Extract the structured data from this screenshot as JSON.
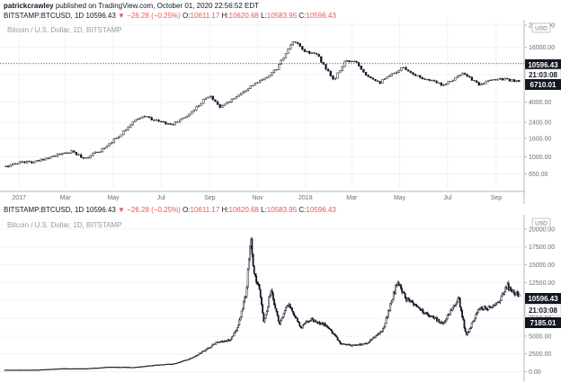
{
  "header": {
    "author": "patrickcrawley",
    "published_text": "published on TradingView.com, October 01, 2020 22:56:52 EDT"
  },
  "ohlc": {
    "symbol": "BITSTAMP:BTCUSD, 1D",
    "last": "10596.43",
    "arrow": "▼",
    "change": "−26.28 (−0.25%)",
    "o_label": "O:",
    "o": "10611.17",
    "h_label": "H:",
    "h": "10620.68",
    "l_label": "L:",
    "l": "10583.95",
    "c_label": "C:",
    "c": "10596.43"
  },
  "colors": {
    "candle": "#131722",
    "ohlc_red": "#ef5350",
    "axis_text": "#6a6d78",
    "border": "#b2b5be",
    "grid": "#f0f3fa"
  },
  "chart_data": [
    {
      "type": "candlestick",
      "scale": "log",
      "watermark": "Bitcoin / U.S. Dollar, 1D, BITSTAMP",
      "currency": "USD",
      "x_ticks": [
        "2017",
        "Mar",
        "May",
        "Jul",
        "Sep",
        "Nov",
        "2018",
        "Mar",
        "May",
        "Jul",
        "Sep"
      ],
      "y_ticks": [
        "28000.00",
        "16000.00",
        "8000.00",
        "4000.00",
        "2400.00",
        "1600.00",
        "1000.00",
        "650.00"
      ],
      "ylim": [
        500,
        28000
      ],
      "price_tags": [
        {
          "text": "10596.43",
          "style": "dark"
        },
        {
          "text": "21:03:08",
          "style": "light"
        },
        {
          "text": "6710.01",
          "style": "dark"
        }
      ],
      "dotted_line_value": 10596.43,
      "x_dates": [
        "2016-12-15",
        "2017-01-05",
        "2017-01-20",
        "2017-02-10",
        "2017-03-10",
        "2017-03-25",
        "2017-04-15",
        "2017-05-10",
        "2017-05-25",
        "2017-06-10",
        "2017-06-25",
        "2017-07-15",
        "2017-08-05",
        "2017-08-25",
        "2017-09-01",
        "2017-09-15",
        "2017-10-01",
        "2017-10-20",
        "2017-11-10",
        "2017-11-25",
        "2017-12-10",
        "2017-12-17",
        "2017-12-30",
        "2018-01-15",
        "2018-02-06",
        "2018-02-20",
        "2018-03-05",
        "2018-03-20",
        "2018-04-06",
        "2018-05-05",
        "2018-05-25",
        "2018-06-25",
        "2018-07-20",
        "2018-08-10",
        "2018-09-05",
        "2018-09-30"
      ],
      "y_values": [
        780,
        890,
        870,
        1010,
        1140,
        960,
        1180,
        1750,
        2400,
        2800,
        2500,
        2250,
        2900,
        4300,
        4700,
        3500,
        4400,
        5800,
        7200,
        9300,
        15000,
        19000,
        14500,
        13500,
        6900,
        11000,
        11500,
        7900,
        6600,
        9700,
        7600,
        6200,
        8200,
        6300,
        7300,
        6650
      ]
    },
    {
      "type": "candlestick",
      "scale": "linear",
      "watermark": "Bitcoin / U.S. Dollar, 1D, BITSTAMP",
      "currency": "USD",
      "x_ticks": [],
      "y_ticks": [
        "20000.00",
        "17500.00",
        "15000.00",
        "12500.00",
        "10000.00",
        "7500.00",
        "5000.00",
        "2500.00",
        "0.00"
      ],
      "ylim": [
        -1200,
        21000
      ],
      "price_tags": [
        {
          "text": "10596.43",
          "style": "dark"
        },
        {
          "text": "21:03:08",
          "style": "light"
        },
        {
          "text": "7185.01",
          "style": "dark"
        }
      ],
      "x_dates": [
        "2015-06-01",
        "2015-10-01",
        "2016-01-01",
        "2016-04-01",
        "2016-07-01",
        "2016-10-01",
        "2017-01-01",
        "2017-03-01",
        "2017-05-01",
        "2017-06-15",
        "2017-08-15",
        "2017-10-01",
        "2017-11-01",
        "2017-12-01",
        "2017-12-17",
        "2017-12-30",
        "2018-01-20",
        "2018-02-06",
        "2018-03-05",
        "2018-04-06",
        "2018-05-05",
        "2018-06-25",
        "2018-08-01",
        "2018-10-01",
        "2018-11-25",
        "2019-01-01",
        "2019-03-01",
        "2019-05-01",
        "2019-06-26",
        "2019-08-01",
        "2019-10-01",
        "2019-12-18",
        "2020-02-14",
        "2020-03-13",
        "2020-05-01",
        "2020-07-01",
        "2020-08-17",
        "2020-10-01"
      ],
      "y_values": [
        230,
        240,
        430,
        420,
        650,
        610,
        950,
        1100,
        1800,
        2700,
        4200,
        4400,
        6500,
        11000,
        19000,
        14000,
        11500,
        6900,
        11500,
        6600,
        9700,
        6200,
        7300,
        6500,
        3900,
        3700,
        3900,
        5700,
        12500,
        10200,
        8300,
        6800,
        10300,
        5000,
        8800,
        9100,
        12000,
        10600
      ]
    }
  ]
}
